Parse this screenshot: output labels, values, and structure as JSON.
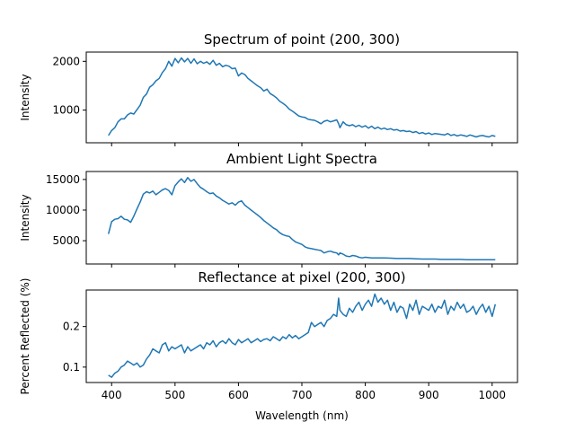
{
  "chart_data": [
    {
      "type": "line",
      "title": "Spectrum of point (200, 300)",
      "ylabel": "Intensity",
      "xlabel": "",
      "xlim": [
        360,
        1040
      ],
      "ylim": [
        330,
        2190
      ],
      "xticks": [
        400,
        500,
        600,
        700,
        800,
        900,
        1000
      ],
      "show_xtick_labels": false,
      "yticks": [
        1000,
        2000
      ],
      "ytick_labels": [
        "1000",
        "2000"
      ],
      "grid": false,
      "color": "#1f77b4",
      "series": [
        {
          "x": [
            395,
            400,
            405,
            410,
            415,
            420,
            425,
            430,
            435,
            440,
            445,
            450,
            455,
            460,
            465,
            470,
            475,
            480,
            485,
            490,
            495,
            500,
            505,
            510,
            515,
            520,
            525,
            530,
            535,
            540,
            545,
            550,
            555,
            560,
            565,
            570,
            575,
            580,
            585,
            590,
            595,
            600,
            605,
            610,
            615,
            620,
            625,
            630,
            635,
            640,
            645,
            650,
            655,
            660,
            665,
            670,
            675,
            680,
            685,
            690,
            695,
            700,
            705,
            710,
            715,
            720,
            725,
            730,
            735,
            740,
            745,
            750,
            755,
            758,
            760,
            765,
            770,
            775,
            780,
            785,
            790,
            795,
            800,
            805,
            810,
            815,
            820,
            825,
            830,
            835,
            840,
            845,
            850,
            855,
            860,
            865,
            870,
            875,
            880,
            885,
            890,
            895,
            900,
            905,
            910,
            915,
            920,
            925,
            930,
            935,
            940,
            945,
            950,
            955,
            960,
            965,
            970,
            975,
            980,
            985,
            990,
            995,
            1000,
            1005
          ],
          "y": [
            480,
            580,
            640,
            760,
            820,
            820,
            900,
            940,
            920,
            1010,
            1100,
            1260,
            1330,
            1470,
            1520,
            1600,
            1650,
            1770,
            1850,
            2000,
            1900,
            2060,
            1970,
            2070,
            1990,
            2060,
            1960,
            2050,
            1950,
            2000,
            1960,
            1990,
            1940,
            2020,
            1920,
            1960,
            1890,
            1920,
            1900,
            1850,
            1860,
            1700,
            1760,
            1730,
            1650,
            1600,
            1550,
            1500,
            1460,
            1390,
            1430,
            1340,
            1300,
            1250,
            1180,
            1140,
            1090,
            1020,
            980,
            930,
            880,
            860,
            850,
            810,
            800,
            790,
            760,
            720,
            770,
            790,
            760,
            780,
            800,
            720,
            640,
            760,
            700,
            680,
            700,
            660,
            690,
            650,
            680,
            630,
            670,
            620,
            650,
            610,
            630,
            600,
            620,
            590,
            600,
            570,
            580,
            560,
            570,
            540,
            560,
            520,
            540,
            510,
            530,
            500,
            520,
            510,
            500,
            490,
            520,
            480,
            500,
            470,
            490,
            480,
            460,
            490,
            470,
            450,
            470,
            480,
            460,
            450,
            480,
            460
          ]
        }
      ]
    },
    {
      "type": "line",
      "title": "Ambient Light Spectra",
      "ylabel": "Intensity",
      "xlabel": "",
      "xlim": [
        360,
        1040
      ],
      "ylim": [
        1200,
        16300
      ],
      "xticks": [
        400,
        500,
        600,
        700,
        800,
        900,
        1000
      ],
      "show_xtick_labels": false,
      "yticks": [
        5000,
        10000,
        15000
      ],
      "ytick_labels": [
        "5000",
        "10000",
        "15000"
      ],
      "grid": false,
      "color": "#1f77b4",
      "series": [
        {
          "x": [
            395,
            400,
            405,
            410,
            415,
            420,
            425,
            430,
            435,
            440,
            445,
            450,
            455,
            460,
            465,
            470,
            475,
            480,
            485,
            490,
            495,
            500,
            505,
            510,
            515,
            520,
            525,
            530,
            535,
            540,
            545,
            550,
            555,
            560,
            565,
            570,
            575,
            580,
            585,
            590,
            595,
            600,
            605,
            610,
            615,
            620,
            625,
            630,
            635,
            640,
            645,
            650,
            655,
            660,
            665,
            670,
            675,
            680,
            685,
            690,
            695,
            700,
            705,
            710,
            715,
            720,
            725,
            730,
            735,
            740,
            745,
            750,
            755,
            758,
            760,
            765,
            770,
            775,
            780,
            785,
            790,
            795,
            800,
            810,
            820,
            830,
            840,
            850,
            860,
            870,
            880,
            890,
            900,
            910,
            920,
            930,
            940,
            950,
            960,
            970,
            980,
            990,
            1000,
            1005
          ],
          "y": [
            6100,
            8100,
            8500,
            8600,
            9000,
            8500,
            8400,
            8000,
            9000,
            10200,
            11300,
            12600,
            13000,
            12800,
            13100,
            12500,
            12900,
            13300,
            13500,
            13200,
            12500,
            14000,
            14600,
            15100,
            14500,
            15300,
            14700,
            15000,
            14300,
            13700,
            13400,
            13000,
            12700,
            12800,
            12300,
            12000,
            11600,
            11300,
            11000,
            11200,
            10800,
            11300,
            11500,
            10800,
            10400,
            10000,
            9600,
            9200,
            8800,
            8300,
            7900,
            7500,
            7100,
            6800,
            6300,
            6000,
            5800,
            5700,
            5200,
            4800,
            4600,
            4400,
            4000,
            3800,
            3700,
            3600,
            3500,
            3400,
            3000,
            3200,
            3300,
            3100,
            3000,
            2700,
            3000,
            2800,
            2500,
            2400,
            2600,
            2500,
            2300,
            2200,
            2300,
            2200,
            2200,
            2200,
            2150,
            2100,
            2100,
            2100,
            2050,
            2000,
            2000,
            2000,
            1950,
            1950,
            1950,
            1950,
            1900,
            1900,
            1900,
            1900,
            1900,
            1900
          ]
        }
      ]
    },
    {
      "type": "line",
      "title": "Reflectance at pixel (200, 300)",
      "ylabel": "Percent Reflected (%)",
      "xlabel": "Wavelength (nm)",
      "xlim": [
        360,
        1040
      ],
      "ylim": [
        0.062,
        0.29
      ],
      "xticks": [
        400,
        500,
        600,
        700,
        800,
        900,
        1000
      ],
      "xtick_labels": [
        "400",
        "500",
        "600",
        "700",
        "800",
        "900",
        "1000"
      ],
      "show_xtick_labels": true,
      "yticks": [
        0.1,
        0.2
      ],
      "ytick_labels": [
        "0.1",
        "0.2"
      ],
      "grid": false,
      "color": "#1f77b4",
      "series": [
        {
          "x": [
            395,
            400,
            405,
            410,
            415,
            420,
            425,
            430,
            435,
            440,
            445,
            450,
            455,
            460,
            465,
            470,
            475,
            480,
            485,
            490,
            495,
            500,
            505,
            510,
            515,
            520,
            525,
            530,
            535,
            540,
            545,
            550,
            555,
            560,
            565,
            570,
            575,
            580,
            585,
            590,
            595,
            600,
            605,
            610,
            615,
            620,
            625,
            630,
            635,
            640,
            645,
            650,
            655,
            660,
            665,
            670,
            675,
            680,
            685,
            690,
            695,
            700,
            705,
            710,
            715,
            720,
            725,
            730,
            735,
            740,
            745,
            750,
            755,
            758,
            760,
            765,
            770,
            775,
            780,
            785,
            790,
            795,
            800,
            805,
            810,
            815,
            820,
            825,
            830,
            835,
            840,
            845,
            850,
            855,
            860,
            865,
            870,
            875,
            880,
            885,
            890,
            895,
            900,
            905,
            910,
            915,
            920,
            925,
            930,
            935,
            940,
            945,
            950,
            955,
            960,
            965,
            970,
            975,
            980,
            985,
            990,
            995,
            1000,
            1005
          ],
          "y": [
            0.08,
            0.075,
            0.085,
            0.09,
            0.1,
            0.105,
            0.115,
            0.11,
            0.105,
            0.11,
            0.1,
            0.105,
            0.12,
            0.13,
            0.145,
            0.14,
            0.135,
            0.155,
            0.16,
            0.14,
            0.15,
            0.145,
            0.15,
            0.155,
            0.135,
            0.15,
            0.14,
            0.145,
            0.15,
            0.155,
            0.145,
            0.16,
            0.155,
            0.165,
            0.15,
            0.16,
            0.165,
            0.158,
            0.17,
            0.16,
            0.155,
            0.168,
            0.16,
            0.165,
            0.17,
            0.16,
            0.165,
            0.17,
            0.163,
            0.168,
            0.17,
            0.165,
            0.175,
            0.17,
            0.165,
            0.175,
            0.17,
            0.18,
            0.172,
            0.178,
            0.17,
            0.175,
            0.18,
            0.185,
            0.21,
            0.2,
            0.205,
            0.21,
            0.2,
            0.215,
            0.22,
            0.23,
            0.225,
            0.27,
            0.24,
            0.23,
            0.225,
            0.245,
            0.235,
            0.25,
            0.26,
            0.24,
            0.255,
            0.265,
            0.25,
            0.28,
            0.26,
            0.27,
            0.255,
            0.265,
            0.24,
            0.26,
            0.235,
            0.25,
            0.245,
            0.22,
            0.255,
            0.24,
            0.265,
            0.23,
            0.25,
            0.245,
            0.24,
            0.255,
            0.235,
            0.25,
            0.245,
            0.265,
            0.23,
            0.25,
            0.24,
            0.26,
            0.245,
            0.255,
            0.235,
            0.24,
            0.25,
            0.23,
            0.245,
            0.255,
            0.235,
            0.25,
            0.225,
            0.255
          ]
        }
      ]
    }
  ]
}
